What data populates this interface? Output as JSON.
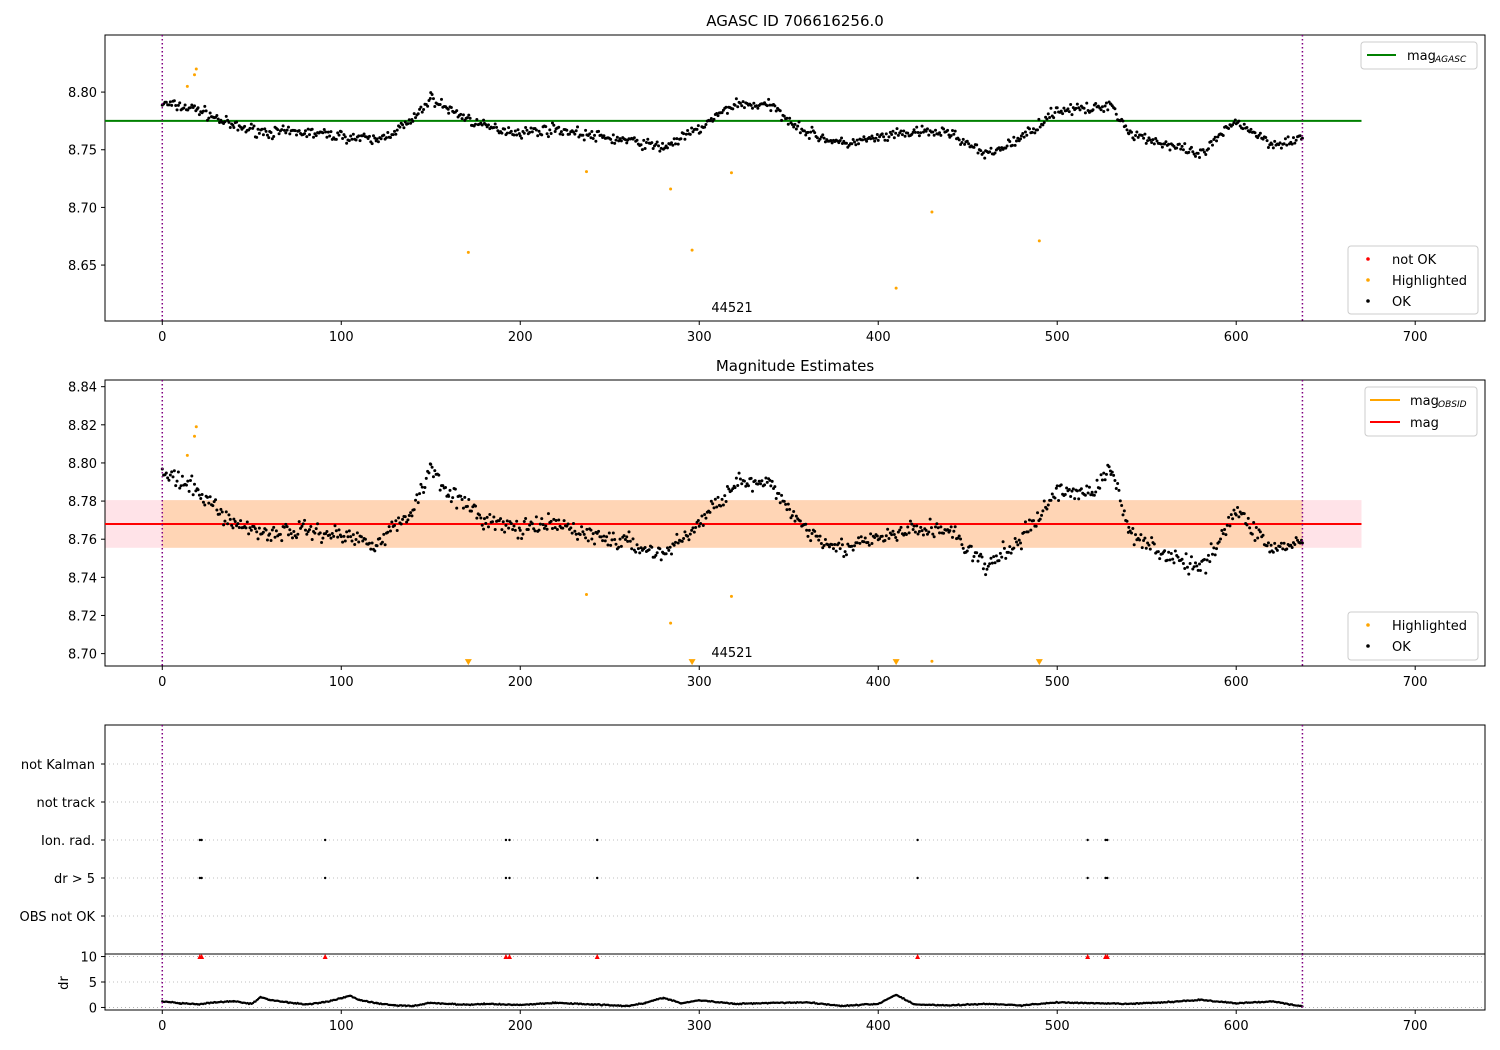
{
  "chart_data": [
    {
      "type": "scatter",
      "title": "AGASC ID 706616256.0",
      "xlabel": "",
      "ylabel": "",
      "xlim": [
        -32,
        739
      ],
      "ylim": [
        8.6015,
        8.8495
      ],
      "x_ticks": [
        0,
        100,
        200,
        300,
        400,
        500,
        600,
        700
      ],
      "y_ticks": [
        8.65,
        8.7,
        8.75,
        8.8
      ],
      "y_tick_labels": [
        "8.65",
        "8.70",
        "8.75",
        "8.80"
      ],
      "annotation": "44521",
      "obs_boundaries": [
        0,
        637
      ],
      "reference_lines": [
        {
          "name": "mag_AGASC",
          "legend_label": "mag",
          "legend_sub": "AGASC",
          "y": 8.775,
          "x_range": [
            -32,
            670
          ],
          "color": "#008000"
        }
      ],
      "legend_top": {
        "placement": "upper right",
        "entries": [
          {
            "label": "mag",
            "sub": "AGASC",
            "color": "#008000"
          }
        ]
      },
      "legend_bottom": {
        "placement": "lower right",
        "entries": [
          {
            "label": "not OK",
            "color": "#ff0000"
          },
          {
            "label": "Highlighted",
            "color": "#ffa500"
          },
          {
            "label": "OK",
            "color": "#000000"
          }
        ]
      },
      "series": [
        {
          "name": "OK",
          "color": "#000000",
          "x": [
            0,
            20,
            40,
            60,
            80,
            100,
            120,
            140,
            150,
            160,
            180,
            200,
            220,
            240,
            260,
            280,
            300,
            320,
            340,
            360,
            380,
            400,
            420,
            440,
            460,
            480,
            500,
            520,
            530,
            540,
            560,
            580,
            600,
            620,
            637
          ],
          "y": [
            8.79,
            8.785,
            8.77,
            8.765,
            8.765,
            8.762,
            8.758,
            8.775,
            8.795,
            8.785,
            8.77,
            8.765,
            8.768,
            8.762,
            8.758,
            8.752,
            8.768,
            8.79,
            8.788,
            8.765,
            8.755,
            8.76,
            8.765,
            8.765,
            8.745,
            8.76,
            8.785,
            8.785,
            8.79,
            8.765,
            8.755,
            8.745,
            8.775,
            8.755,
            8.76
          ]
        },
        {
          "name": "Highlighted",
          "color": "#ffa500",
          "x": [
            14,
            18,
            19,
            171,
            237,
            284,
            296,
            318,
            410,
            430,
            490
          ],
          "y": [
            8.805,
            8.815,
            8.82,
            8.661,
            8.731,
            8.716,
            8.663,
            8.73,
            8.63,
            8.696,
            8.671
          ]
        }
      ]
    },
    {
      "type": "scatter",
      "title": "Magnitude Estimates",
      "xlabel": "",
      "ylabel": "",
      "xlim": [
        -32,
        739
      ],
      "ylim": [
        8.6935,
        8.8435
      ],
      "x_ticks": [
        0,
        100,
        200,
        300,
        400,
        500,
        600,
        700
      ],
      "y_ticks": [
        8.7,
        8.72,
        8.74,
        8.76,
        8.78,
        8.8,
        8.82,
        8.84
      ],
      "y_tick_labels": [
        "8.70",
        "8.72",
        "8.74",
        "8.76",
        "8.78",
        "8.80",
        "8.82",
        "8.84"
      ],
      "annotation": "44521",
      "obs_boundaries": [
        0,
        637
      ],
      "reference_lines": [
        {
          "name": "mag_OBSID",
          "y": 8.768,
          "x_range": [
            0,
            637
          ],
          "color": "#ffa500"
        },
        {
          "name": "mag",
          "y": 8.768,
          "x_range": [
            -32,
            670
          ],
          "color": "#ff0000"
        }
      ],
      "bands": [
        {
          "y_range": [
            8.7555,
            8.7805
          ],
          "x_range": [
            -32,
            670
          ],
          "color": "#ffc0cb"
        },
        {
          "y_range": [
            8.7555,
            8.7805
          ],
          "x_range": [
            0,
            637
          ],
          "color": "#ffa500"
        }
      ],
      "legend_top": {
        "placement": "upper right",
        "entries": [
          {
            "label": "mag",
            "sub": "OBSID",
            "color": "#ffa500"
          },
          {
            "label": "mag",
            "sub": "",
            "color": "#ff0000"
          }
        ]
      },
      "legend_bottom": {
        "placement": "lower right",
        "entries": [
          {
            "label": "Highlighted",
            "color": "#ffa500"
          },
          {
            "label": "OK",
            "color": "#000000"
          }
        ]
      },
      "series": [
        {
          "name": "OK",
          "color": "#000000",
          "x": [
            0,
            20,
            40,
            60,
            80,
            100,
            120,
            140,
            150,
            160,
            180,
            200,
            220,
            240,
            260,
            280,
            300,
            320,
            340,
            360,
            380,
            400,
            420,
            440,
            460,
            480,
            500,
            520,
            530,
            540,
            560,
            580,
            600,
            620,
            637
          ],
          "y": [
            8.795,
            8.785,
            8.768,
            8.763,
            8.765,
            8.762,
            8.758,
            8.775,
            8.798,
            8.785,
            8.77,
            8.765,
            8.768,
            8.762,
            8.758,
            8.752,
            8.768,
            8.79,
            8.788,
            8.765,
            8.755,
            8.76,
            8.765,
            8.765,
            8.745,
            8.76,
            8.785,
            8.785,
            8.797,
            8.765,
            8.752,
            8.744,
            8.775,
            8.755,
            8.758
          ]
        },
        {
          "name": "Highlighted",
          "color": "#ffa500",
          "x": [
            14,
            18,
            19,
            237,
            284,
            318,
            430
          ],
          "y": [
            8.804,
            8.814,
            8.819,
            8.731,
            8.716,
            8.73,
            8.696
          ]
        },
        {
          "name": "Below range",
          "color": "#ffa500",
          "marker": "triangle-down",
          "x": [
            171,
            296,
            410,
            490
          ],
          "y": [
            8.6945,
            8.6945,
            8.6945,
            8.6945
          ]
        }
      ]
    },
    {
      "type": "scatter",
      "title": "",
      "xlabel": "",
      "ylabel": "",
      "xlim": [
        -32,
        739
      ],
      "categories": [
        "not Kalman",
        "not track",
        "Ion. rad.",
        "dr > 5",
        "OBS not OK"
      ],
      "obs_boundaries": [
        0,
        637
      ],
      "series": [
        {
          "name": "Ion. rad.",
          "x": [
            21,
            22,
            91,
            192,
            194,
            243,
            422,
            517,
            527,
            528
          ]
        },
        {
          "name": "dr > 5",
          "x": [
            21,
            22,
            91,
            192,
            194,
            243,
            422,
            517,
            527,
            528
          ]
        }
      ]
    },
    {
      "type": "scatter",
      "title": "",
      "xlabel": "",
      "ylabel": "dr",
      "xlim": [
        -32,
        739
      ],
      "ylim": [
        -0.5,
        10.5
      ],
      "x_ticks": [
        0,
        100,
        200,
        300,
        400,
        500,
        600,
        700
      ],
      "y_ticks": [
        0,
        5,
        10
      ],
      "y_tick_labels": [
        "0",
        "5",
        "10"
      ],
      "obs_boundaries": [
        0,
        637
      ],
      "series": [
        {
          "name": "dr",
          "color": "#000000",
          "x": [
            0,
            10,
            20,
            30,
            40,
            50,
            55,
            60,
            70,
            80,
            90,
            100,
            105,
            110,
            120,
            130,
            140,
            150,
            160,
            170,
            180,
            200,
            220,
            240,
            260,
            270,
            280,
            290,
            300,
            320,
            340,
            360,
            380,
            400,
            410,
            420,
            440,
            460,
            480,
            500,
            520,
            540,
            560,
            580,
            600,
            620,
            637
          ],
          "y": [
            1.2,
            0.8,
            0.6,
            1.0,
            1.2,
            0.7,
            2.0,
            1.5,
            1.0,
            0.6,
            1.0,
            1.8,
            2.3,
            1.5,
            0.8,
            0.4,
            0.3,
            0.9,
            0.7,
            0.5,
            0.7,
            0.5,
            0.9,
            0.6,
            0.3,
            0.9,
            1.9,
            0.8,
            1.4,
            0.7,
            0.9,
            1.0,
            0.3,
            0.7,
            2.5,
            0.6,
            0.4,
            0.7,
            0.4,
            1.0,
            0.8,
            0.7,
            1.0,
            1.5,
            0.8,
            1.2,
            0.2
          ]
        },
        {
          "name": "dr > 5",
          "color": "#ff0000",
          "marker": "triangle-up",
          "x": [
            21,
            22,
            91,
            192,
            194,
            243,
            422,
            517,
            527,
            528
          ],
          "y": [
            10,
            10,
            10,
            10,
            10,
            10,
            10,
            10,
            10,
            10
          ]
        }
      ]
    }
  ]
}
